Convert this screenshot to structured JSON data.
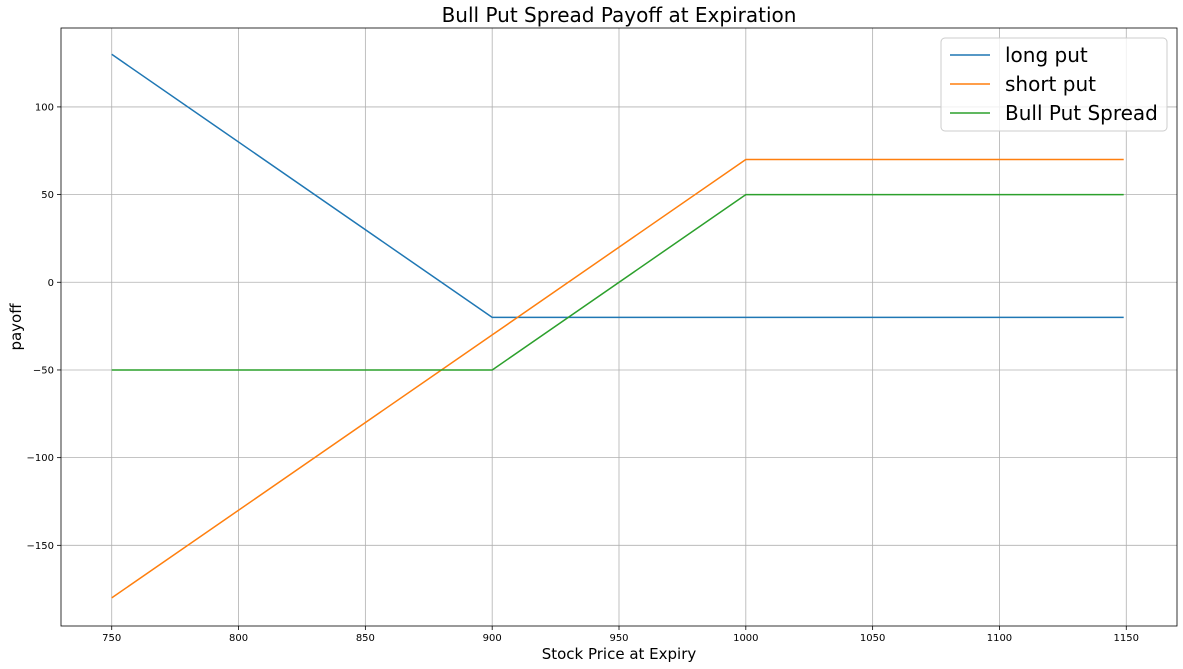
{
  "chart_data": {
    "type": "line",
    "title": "Bull Put Spread Payoff at Expiration",
    "xlabel": "Stock Price at Expiry",
    "ylabel": "payoff",
    "xlim": [
      730,
      1170
    ],
    "ylim": [
      -196,
      145
    ],
    "xticks": [
      750,
      800,
      850,
      900,
      950,
      1000,
      1050,
      1100,
      1150
    ],
    "yticks": [
      -150,
      -100,
      -50,
      0,
      50,
      100
    ],
    "grid": true,
    "legend_position": "top-right",
    "series": [
      {
        "name": "long put",
        "color": "#1f77b4",
        "x": [
          750,
          900,
          1000,
          1149
        ],
        "y": [
          130,
          -20,
          -20,
          -20
        ]
      },
      {
        "name": "short put",
        "color": "#ff7f0e",
        "x": [
          750,
          900,
          1000,
          1149
        ],
        "y": [
          -180,
          -30,
          70,
          70
        ]
      },
      {
        "name": "Bull Put Spread",
        "color": "#2ca02c",
        "x": [
          750,
          900,
          1000,
          1149
        ],
        "y": [
          -50,
          -50,
          50,
          50
        ]
      }
    ]
  }
}
